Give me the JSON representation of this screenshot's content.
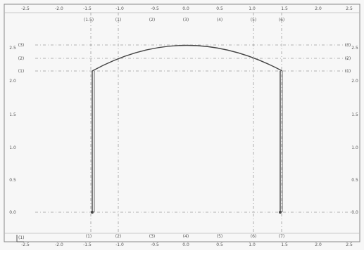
{
  "viewer": {
    "top_ruler_labels": [
      "-2.5",
      "-2.0",
      "-1.5",
      "-1.0",
      "-0.5",
      "0.0",
      "0.5",
      "1.0",
      "1.5",
      "2.0",
      "2.5"
    ],
    "bottom_ruler_labels": [
      "-2.5",
      "-2.0",
      "-1.5",
      "-1.0",
      "-0.5",
      "0.0",
      "0.5",
      "1.0",
      "1.5",
      "2.0",
      "2.5"
    ],
    "right_ruler_labels": [
      "2.5",
      "2.0",
      "1.5",
      "1.0",
      "0.5",
      "0.0"
    ],
    "left_ruler_labels": [
      "2.5",
      "2.0",
      "1.5",
      "1.0",
      "0.5",
      "0.0"
    ],
    "gridline_markers_top": [
      "(1.5)",
      "(1)",
      "(2)",
      "(3)",
      "(4)",
      "(5)",
      "(6)"
    ],
    "gridline_markers_bottom": [
      "(1)",
      "(2)",
      "(3)",
      "(4)",
      "(5)",
      "(6)",
      "(7)"
    ],
    "left_markers": [
      "(3)",
      "(2)",
      "(1)"
    ],
    "right_markers": [
      "(3)",
      "(2)",
      "(1)"
    ],
    "origin_marker": "(1)"
  },
  "colors": {
    "background": "#f7f7f7",
    "grid": "#9a9a9a",
    "structure": "#444444",
    "frame": "#8a8a8a"
  }
}
